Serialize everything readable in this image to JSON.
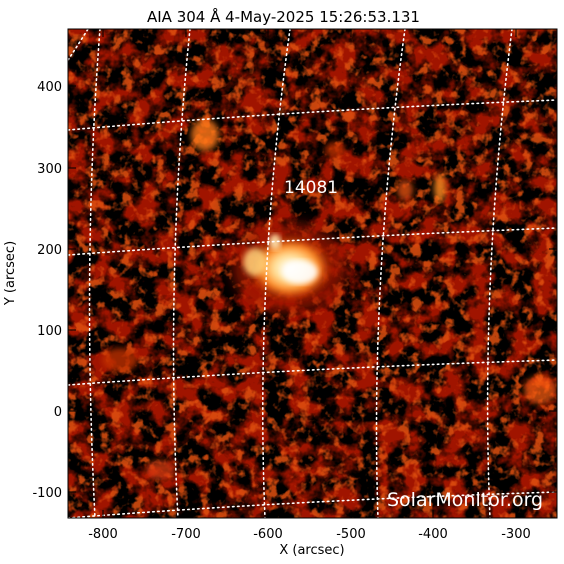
{
  "figure": {
    "title": "AIA 304 Å   4-May-2025 15:26:53.131",
    "xlabel": "X (arcsec)",
    "ylabel": "Y (arcsec)",
    "active_region": "14081",
    "watermark": "SolarMonitor.org"
  },
  "axes": {
    "x_ticks": [
      "-800",
      "-700",
      "-600",
      "-500",
      "-400",
      "-300"
    ],
    "y_ticks": [
      "400",
      "300",
      "200",
      "100",
      "0",
      "-100"
    ],
    "xlim": [
      -845,
      -255
    ],
    "ylim": [
      -135,
      470
    ]
  },
  "colors": {
    "background": "#000000",
    "colormap": [
      "#000000",
      "#6a0000",
      "#c02000",
      "#ff7a1a",
      "#ffd27a",
      "#ffffff"
    ],
    "grid": "#ffffff"
  }
}
